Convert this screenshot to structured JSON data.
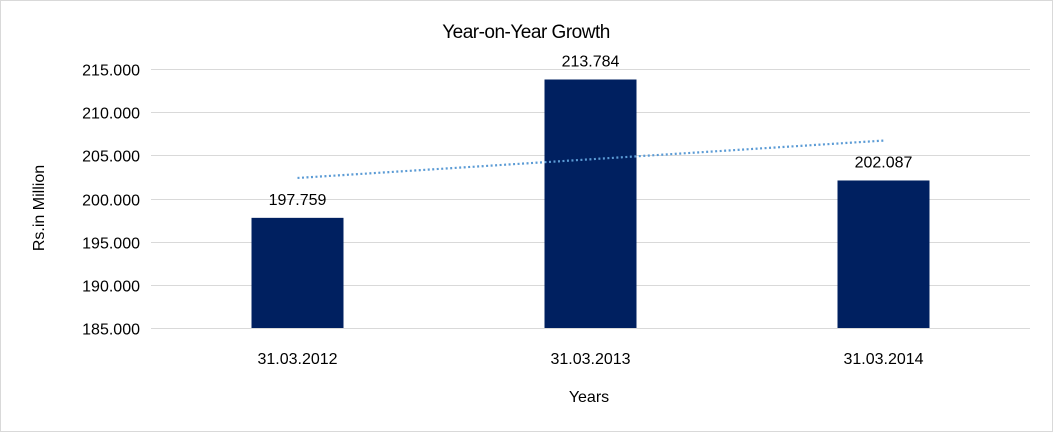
{
  "chart_data": {
    "type": "bar",
    "title": "Year-on-Year Growth",
    "xlabel": "Years",
    "ylabel": "Rs.in Million",
    "categories": [
      "31.03.2012",
      "31.03.2013",
      "31.03.2014"
    ],
    "values": [
      197.759,
      213.784,
      202.087
    ],
    "value_labels": [
      "197.759",
      "213.784",
      "202.087"
    ],
    "ylim": [
      185,
      215
    ],
    "yticks": [
      185,
      190,
      195,
      200,
      205,
      210,
      215
    ],
    "ytick_labels": [
      "185.000",
      "190.000",
      "195.000",
      "200.000",
      "205.000",
      "210.000",
      "215.000"
    ],
    "trendline": {
      "type": "linear",
      "style": "dotted",
      "color": "#5b9bd5"
    },
    "bar_color": "#002060",
    "gridline_color": "#d9d9d9",
    "grid": true,
    "legend": "none"
  }
}
